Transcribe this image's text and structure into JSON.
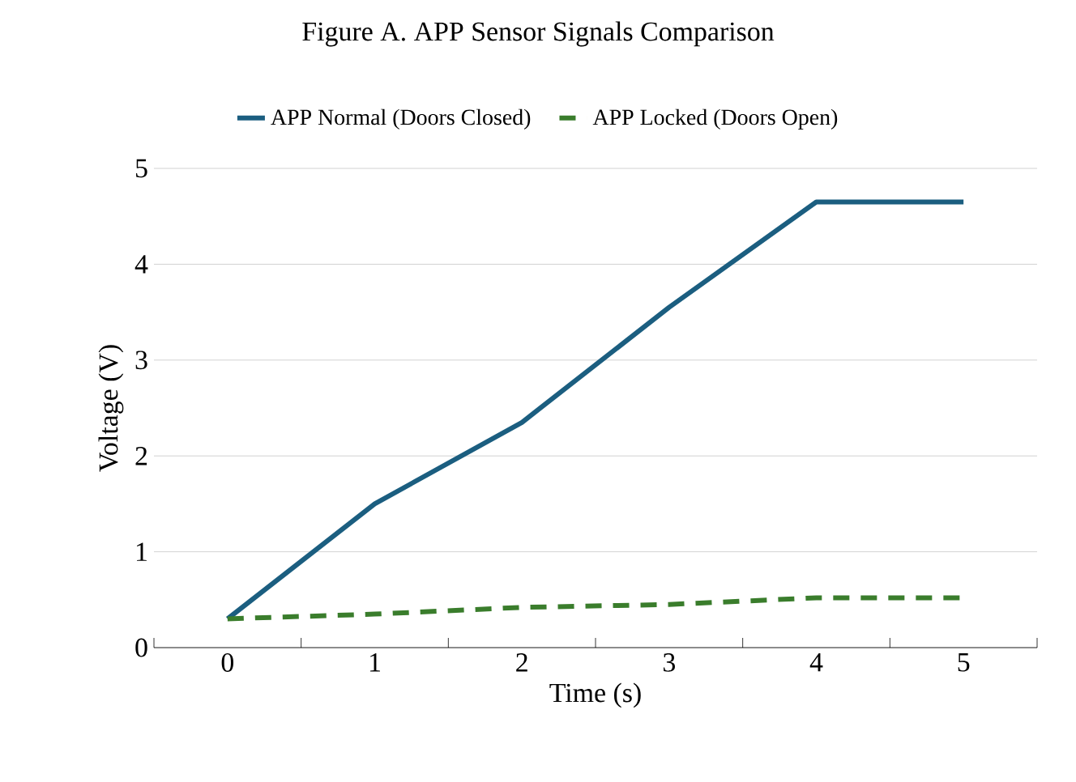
{
  "chart_data": {
    "type": "line",
    "title": "Figure A. APP Sensor Signals Comparison",
    "xlabel": "Time  (s)",
    "ylabel": "Voltage  (V)",
    "categories": [
      "0",
      "1",
      "2",
      "3",
      "4",
      "5"
    ],
    "series": [
      {
        "name": "APP Normal (Doors Closed)",
        "color": "#1b5e80",
        "line_style": "solid",
        "values": [
          0.3,
          1.5,
          2.35,
          3.55,
          4.65,
          4.65
        ]
      },
      {
        "name": "APP Locked (Doors Open)",
        "color": "#3a7d2c",
        "line_style": "dashed",
        "values": [
          0.3,
          0.35,
          0.42,
          0.45,
          0.52,
          0.52
        ]
      }
    ],
    "ylim": [
      0,
      5
    ],
    "yticks": [
      0,
      1,
      2,
      3,
      4,
      5
    ],
    "grid": "y",
    "legend": "top"
  }
}
